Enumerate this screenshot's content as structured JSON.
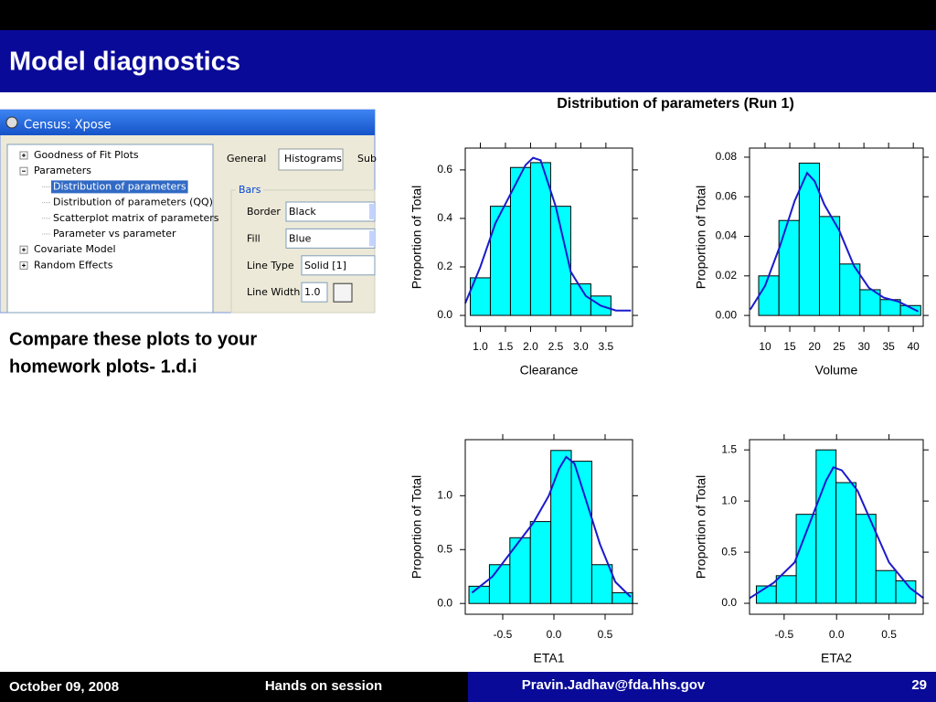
{
  "header": {
    "title": "Model diagnostics"
  },
  "ui": {
    "window_title": "Census: Xpose",
    "tree": [
      {
        "label": "Goodness of Fit Plots"
      },
      {
        "label": "Parameters",
        "children": [
          {
            "label": "Distribution of parameters",
            "selected": true
          },
          {
            "label": "Distribution of parameters (QQ)"
          },
          {
            "label": "Scatterplot matrix of parameters"
          },
          {
            "label": "Parameter vs parameter"
          }
        ]
      },
      {
        "label": "Covariate Model"
      },
      {
        "label": "Random Effects"
      }
    ],
    "tabs": [
      "General",
      "Histograms",
      "Sub"
    ],
    "group": "Bars",
    "fields": [
      {
        "label": "Border",
        "value": "Black"
      },
      {
        "label": "Fill",
        "value": "Blue"
      },
      {
        "label": "Line Type",
        "value": "Solid [1]"
      },
      {
        "label": "Line Width",
        "value": "1.0"
      }
    ]
  },
  "body_text": [
    "Compare these plots to your",
    "homework plots- 1.d.i"
  ],
  "figure_title": "Distribution of parameters (Run 1)",
  "chart_data": [
    {
      "type": "histogram",
      "xlabel": "Clearance",
      "ylabel": "Proportion of Total",
      "color": "#00ffff",
      "line_color": "#1a1acc",
      "bins": [
        0.8,
        1.2,
        1.6,
        2.0,
        2.4,
        2.8,
        3.2,
        3.6
      ],
      "values": [
        0.155,
        0.45,
        0.61,
        0.63,
        0.45,
        0.13,
        0.08
      ],
      "density": {
        "x": [
          0.7,
          1.0,
          1.3,
          1.6,
          1.9,
          2.05,
          2.2,
          2.5,
          2.8,
          3.1,
          3.4,
          3.7,
          4.0
        ],
        "y": [
          0.05,
          0.2,
          0.38,
          0.5,
          0.62,
          0.65,
          0.64,
          0.45,
          0.18,
          0.08,
          0.04,
          0.02,
          0.02
        ]
      },
      "xlim": [
        0.7,
        4.03
      ],
      "ylim": [
        -0.045,
        0.69
      ],
      "xticks": [
        {
          "value": 1.0,
          "label": "1.0"
        },
        1.5,
        {
          "value": 2.0,
          "label": "2.0"
        },
        2.5,
        {
          "value": 3.0,
          "label": "3.0"
        },
        3.5
      ],
      "yticks": [
        {
          "value": 0,
          "label": "0.0"
        },
        0.2,
        0.4,
        0.6
      ]
    },
    {
      "type": "histogram",
      "xlabel": "Volume",
      "ylabel": "Proportion of Total",
      "color": "#00ffff",
      "line_color": "#1a1acc",
      "bins": [
        8.7,
        12.8,
        16.9,
        21,
        25.1,
        29.2,
        33.3,
        37.4,
        41.5
      ],
      "values": [
        0.02,
        0.048,
        0.077,
        0.05,
        0.026,
        0.013,
        0.008,
        0.005
      ],
      "density": {
        "x": [
          7,
          10,
          13,
          16,
          18.5,
          20,
          22,
          25,
          28,
          31,
          34,
          37,
          41
        ],
        "y": [
          0.003,
          0.015,
          0.035,
          0.058,
          0.072,
          0.068,
          0.056,
          0.043,
          0.025,
          0.014,
          0.009,
          0.007,
          0.002
        ]
      },
      "xlim": [
        6.85,
        42
      ],
      "ylim": [
        -0.0055,
        0.0846
      ],
      "xticks": [
        10,
        15,
        20,
        25,
        30,
        35,
        40
      ],
      "yticks": [
        {
          "value": 0,
          "label": "0.00"
        },
        {
          "value": 0.02,
          "label": "0.02"
        },
        {
          "value": 0.04,
          "label": "0.04"
        },
        {
          "value": 0.06,
          "label": "0.06"
        },
        {
          "value": 0.08,
          "label": "0.08"
        }
      ]
    },
    {
      "type": "histogram",
      "xlabel": "ETA1",
      "ylabel": "Proportion of Total",
      "color": "#00ffff",
      "line_color": "#1a1acc",
      "bins": [
        -0.83,
        -0.63,
        -0.43,
        -0.23,
        -0.03,
        0.17,
        0.37,
        0.57,
        0.77
      ],
      "values": [
        0.16,
        0.36,
        0.61,
        0.76,
        1.42,
        1.32,
        0.36,
        0.1
      ],
      "density": {
        "x": [
          -0.8,
          -0.6,
          -0.4,
          -0.2,
          -0.05,
          0.05,
          0.12,
          0.2,
          0.3,
          0.45,
          0.6,
          0.75
        ],
        "y": [
          0.1,
          0.25,
          0.5,
          0.75,
          1.0,
          1.25,
          1.36,
          1.3,
          1.0,
          0.55,
          0.2,
          0.06
        ]
      },
      "xlim": [
        -0.866,
        0.768
      ],
      "ylim": [
        -0.1,
        1.52
      ],
      "xticks": [
        -0.5,
        {
          "value": 0,
          "label": "0.0"
        },
        0.5
      ],
      "yticks": [
        {
          "value": 0,
          "label": "0.0"
        },
        0.5,
        {
          "value": 1,
          "label": "1.0"
        }
      ]
    },
    {
      "type": "histogram",
      "xlabel": "ETA2",
      "ylabel": "Proportion of Total",
      "color": "#00ffff",
      "line_color": "#1a1acc",
      "bins": [
        -0.765,
        -0.575,
        -0.385,
        -0.195,
        -0.005,
        0.185,
        0.375,
        0.565,
        0.755
      ],
      "values": [
        0.17,
        0.27,
        0.87,
        1.5,
        1.18,
        0.87,
        0.32,
        0.22
      ],
      "density": {
        "x": [
          -0.83,
          -0.6,
          -0.4,
          -0.25,
          -0.1,
          -0.03,
          0.05,
          0.2,
          0.35,
          0.5,
          0.7,
          0.83
        ],
        "y": [
          0.05,
          0.2,
          0.4,
          0.8,
          1.2,
          1.33,
          1.3,
          1.1,
          0.75,
          0.4,
          0.15,
          0.05
        ]
      },
      "xlim": [
        -0.83,
        0.826
      ],
      "ylim": [
        -0.107,
        1.6
      ],
      "xticks": [
        -0.5,
        {
          "value": 0,
          "label": "0.0"
        },
        0.5
      ],
      "yticks": [
        {
          "value": 0,
          "label": "0.0"
        },
        0.5,
        {
          "value": 1,
          "label": "1.0"
        },
        1.5
      ]
    }
  ],
  "footer": {
    "date": "October 09, 2008",
    "session": "Hands on session",
    "email": "Pravin.Jadhav@fda.hhs.gov",
    "page": "29"
  }
}
